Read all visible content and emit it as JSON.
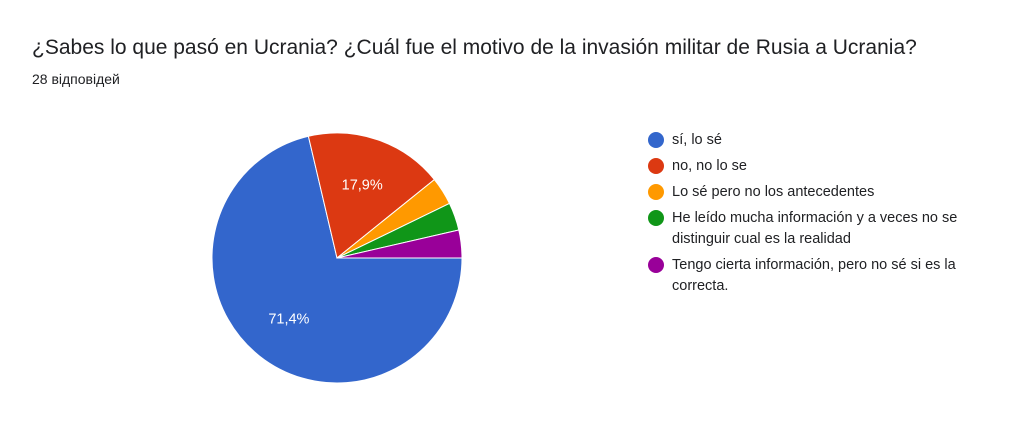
{
  "header": {
    "title": "¿Sabes lo que pasó en Ucrania? ¿Cuál fue el motivo de la invasión militar de Rusia a Ucrania?",
    "responses": "28 відповідей"
  },
  "chart_data": {
    "type": "pie",
    "title": "¿Sabes lo que pasó en Ucrania? ¿Cuál fue el motivo de la invasión militar de Rusia a Ucrania?",
    "categories": [
      "sí, lo sé",
      "no, no lo se",
      "Lo sé pero no los antecedentes",
      "He leído mucha información y a veces no se distinguir cual es la realidad",
      "Tengo cierta información, pero no sé si es la correcta."
    ],
    "values": [
      71.4,
      17.9,
      3.6,
      3.6,
      3.6
    ],
    "data_labels": [
      "71,4%",
      "17,9%",
      "",
      "",
      ""
    ],
    "colors": [
      "#3366cc",
      "#dc3912",
      "#ff9900",
      "#109618",
      "#990099"
    ],
    "legend_position": "right"
  }
}
